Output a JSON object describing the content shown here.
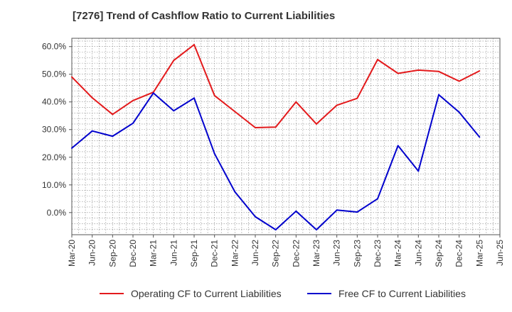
{
  "chart_data": {
    "type": "line",
    "title": "[7276]  Trend of Cashflow Ratio to Current Liabilities",
    "xlabel": "",
    "ylabel": "",
    "categories": [
      "Mar-20",
      "Jun-20",
      "Sep-20",
      "Dec-20",
      "Mar-21",
      "Jun-21",
      "Sep-21",
      "Dec-21",
      "Mar-22",
      "Jun-22",
      "Sep-22",
      "Dec-22",
      "Mar-23",
      "Jun-23",
      "Sep-23",
      "Dec-23",
      "Mar-24",
      "Jun-24",
      "Sep-24",
      "Dec-24",
      "Mar-25",
      "Jun-25"
    ],
    "yticks": [
      "0.0%",
      "10.0%",
      "20.0%",
      "30.0%",
      "40.0%",
      "50.0%",
      "60.0%"
    ],
    "ylim": [
      -8,
      63
    ],
    "grid": true,
    "legend_position": "bottom",
    "series": [
      {
        "name": "Operating CF to Current Liabilities",
        "color": "#e31a1c",
        "values": [
          49.0,
          41.5,
          35.5,
          40.5,
          43.5,
          55.0,
          60.7,
          42.3,
          36.5,
          30.7,
          30.9,
          40.0,
          32.0,
          38.8,
          41.3,
          55.3,
          50.3,
          51.5,
          51.0,
          47.5,
          51.2,
          null
        ]
      },
      {
        "name": "Free CF to Current Liabilities",
        "color": "#0000cd",
        "values": [
          23.3,
          29.5,
          27.6,
          32.3,
          43.2,
          36.8,
          41.4,
          21.3,
          7.5,
          -1.5,
          -6.2,
          0.5,
          -6.2,
          0.9,
          0.2,
          5.0,
          24.2,
          15.0,
          42.6,
          36.3,
          27.3,
          null
        ]
      }
    ]
  }
}
